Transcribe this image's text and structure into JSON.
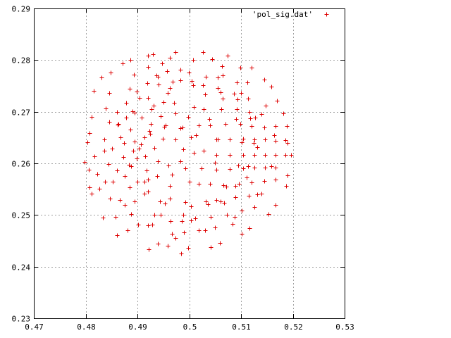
{
  "chart_data": {
    "type": "scatter",
    "title": "",
    "xlabel": "",
    "ylabel": "",
    "xlim": [
      0.47,
      0.53
    ],
    "ylim": [
      0.23,
      0.29
    ],
    "x_ticks": [
      "0.47",
      "0.48",
      "0.49",
      "0.5",
      "0.51",
      "0.52",
      "0.53"
    ],
    "y_ticks": [
      "0.23",
      "0.24",
      "0.25",
      "0.26",
      "0.27",
      "0.28",
      "0.29"
    ],
    "grid": true,
    "legend_position": "top-right",
    "marker": "+",
    "colors": {
      "series": "#dd0000",
      "grid": "#a0a0a0",
      "axes": "#000000"
    },
    "series": [
      {
        "name": "'pol_sig.dat'",
        "points": [
          [
            0.4817,
            0.2613
          ],
          [
            0.4836,
            0.2647
          ],
          [
            0.4862,
            0.2675
          ],
          [
            0.4894,
            0.2698
          ],
          [
            0.4931,
            0.2712
          ],
          [
            0.4971,
            0.2717
          ],
          [
            0.5009,
            0.2709
          ],
          [
            0.5039,
            0.2686
          ],
          [
            0.5055,
            0.2646
          ],
          [
            0.5049,
            0.2601
          ],
          [
            0.5018,
            0.256
          ],
          [
            0.4963,
            0.2532
          ],
          [
            0.4894,
            0.2527
          ],
          [
            0.4827,
            0.2551
          ],
          [
            0.4798,
            0.2603
          ],
          [
            0.4807,
            0.2659
          ],
          [
            0.4839,
            0.2707
          ],
          [
            0.4885,
            0.2744
          ],
          [
            0.494,
            0.2768
          ],
          [
            0.4999,
            0.2776
          ],
          [
            0.5055,
            0.2766
          ],
          [
            0.51,
            0.2736
          ],
          [
            0.5127,
            0.2689
          ],
          [
            0.5131,
            0.2632
          ],
          [
            0.5111,
            0.2573
          ],
          [
            0.5068,
            0.2524
          ],
          [
            0.5003,
            0.249
          ],
          [
            0.4928,
            0.2481
          ],
          [
            0.4858,
            0.2497
          ],
          [
            0.4811,
            0.2542
          ],
          [
            0.4873,
            0.2612
          ],
          [
            0.4895,
            0.2642
          ],
          [
            0.4923,
            0.2663
          ],
          [
            0.4955,
            0.2673
          ],
          [
            0.4987,
            0.267
          ],
          [
            0.5013,
            0.2654
          ],
          [
            0.5028,
            0.2624
          ],
          [
            0.5024,
            0.259
          ],
          [
            0.5,
            0.2564
          ],
          [
            0.4963,
            0.2556
          ],
          [
            0.4921,
            0.2568
          ],
          [
            0.4888,
            0.2595
          ],
          [
            0.4868,
            0.265
          ],
          [
            0.4878,
            0.2689
          ],
          [
            0.4904,
            0.2727
          ],
          [
            0.4941,
            0.2753
          ],
          [
            0.4983,
            0.2761
          ],
          [
            0.5026,
            0.2751
          ],
          [
            0.5064,
            0.2725
          ],
          [
            0.509,
            0.2686
          ],
          [
            0.5101,
            0.2641
          ],
          [
            0.5094,
            0.2596
          ],
          [
            0.5072,
            0.2555
          ],
          [
            0.5036,
            0.2521
          ],
          [
            0.4988,
            0.25
          ],
          [
            0.4932,
            0.25
          ],
          [
            0.4875,
            0.252
          ],
          [
            0.4838,
            0.2565
          ],
          [
            0.4822,
            0.258
          ],
          [
            0.4847,
            0.2532
          ],
          [
            0.4902,
            0.2481
          ],
          [
            0.4967,
            0.2463
          ],
          [
            0.5031,
            0.247
          ],
          [
            0.5088,
            0.2497
          ],
          [
            0.5131,
            0.254
          ],
          [
            0.5158,
            0.2594
          ],
          [
            0.5164,
            0.2654
          ],
          [
            0.5147,
            0.2712
          ],
          [
            0.5112,
            0.2757
          ],
          [
            0.5063,
            0.2788
          ],
          [
            0.5007,
            0.28
          ],
          [
            0.4948,
            0.2793
          ],
          [
            0.4893,
            0.2772
          ],
          [
            0.4846,
            0.2737
          ],
          [
            0.4812,
            0.269
          ],
          [
            0.4803,
            0.2641
          ],
          [
            0.4806,
            0.2588
          ],
          [
            0.4881,
            0.247
          ],
          [
            0.4939,
            0.2444
          ],
          [
            0.4998,
            0.2437
          ],
          [
            0.5059,
            0.2446
          ],
          [
            0.5117,
            0.2474
          ],
          [
            0.5166,
            0.252
          ],
          [
            0.519,
            0.2577
          ],
          [
            0.519,
            0.264
          ],
          [
            0.5182,
            0.2697
          ],
          [
            0.5158,
            0.2748
          ],
          [
            0.512,
            0.2786
          ],
          [
            0.5074,
            0.2808
          ],
          [
            0.5027,
            0.2816
          ],
          [
            0.4974,
            0.2816
          ],
          [
            0.4921,
            0.2808
          ],
          [
            0.4872,
            0.2793
          ],
          [
            0.483,
            0.2766
          ],
          [
            0.4816,
            0.274
          ],
          [
            0.4848,
            0.2776
          ],
          [
            0.4887,
            0.2801
          ],
          [
            0.493,
            0.2812
          ],
          [
            0.4963,
            0.2805
          ],
          [
            0.5044,
            0.2802
          ],
          [
            0.5098,
            0.2786
          ],
          [
            0.5145,
            0.2762
          ],
          [
            0.517,
            0.2722
          ],
          [
            0.5188,
            0.2672
          ],
          [
            0.5196,
            0.2616
          ],
          [
            0.5187,
            0.2557
          ],
          [
            0.5153,
            0.2502
          ],
          [
            0.5101,
            0.2464
          ],
          [
            0.5041,
            0.2438
          ],
          [
            0.4985,
            0.2426
          ],
          [
            0.4922,
            0.2433
          ],
          [
            0.4861,
            0.2461
          ],
          [
            0.4833,
            0.2495
          ],
          [
            0.4808,
            0.2553
          ],
          [
            0.4876,
            0.2576
          ],
          [
            0.4913,
            0.2541
          ],
          [
            0.4953,
            0.2522
          ],
          [
            0.5003,
            0.2517
          ],
          [
            0.5052,
            0.2529
          ],
          [
            0.5089,
            0.2556
          ],
          [
            0.5113,
            0.2595
          ],
          [
            0.5124,
            0.264
          ],
          [
            0.5118,
            0.2687
          ],
          [
            0.5093,
            0.2724
          ],
          [
            0.5055,
            0.2746
          ],
          [
            0.5008,
            0.2752
          ],
          [
            0.4962,
            0.2746
          ],
          [
            0.4921,
            0.2727
          ],
          [
            0.4891,
            0.2701
          ],
          [
            0.4863,
            0.2676
          ],
          [
            0.4851,
            0.2628
          ],
          [
            0.486,
            0.2586
          ],
          [
            0.4885,
            0.2553
          ],
          [
            0.4939,
            0.2604
          ],
          [
            0.496,
            0.2596
          ],
          [
            0.4983,
            0.2604
          ],
          [
            0.4988,
            0.2627
          ],
          [
            0.4974,
            0.2646
          ],
          [
            0.4949,
            0.2648
          ],
          [
            0.4932,
            0.263
          ],
          [
            0.4915,
            0.2614
          ],
          [
            0.4918,
            0.2586
          ],
          [
            0.4938,
            0.2575
          ],
          [
            0.4966,
            0.2578
          ],
          [
            0.4993,
            0.2591
          ],
          [
            0.5009,
            0.262
          ],
          [
            0.5004,
            0.265
          ],
          [
            0.4983,
            0.2668
          ],
          [
            0.4952,
            0.2671
          ],
          [
            0.4925,
            0.2657
          ],
          [
            0.4907,
            0.2637
          ],
          [
            0.4903,
            0.2628
          ],
          [
            0.5053,
            0.2617
          ],
          [
            0.5078,
            0.2616
          ],
          [
            0.5104,
            0.2617
          ],
          [
            0.5126,
            0.2617
          ],
          [
            0.5146,
            0.2617
          ],
          [
            0.5166,
            0.2617
          ],
          [
            0.5186,
            0.2617
          ],
          [
            0.5053,
            0.2588
          ],
          [
            0.5078,
            0.2589
          ],
          [
            0.5104,
            0.259
          ],
          [
            0.5126,
            0.2592
          ],
          [
            0.5146,
            0.2592
          ],
          [
            0.5166,
            0.2592
          ],
          [
            0.5053,
            0.2646
          ],
          [
            0.5078,
            0.2647
          ],
          [
            0.5104,
            0.2648
          ],
          [
            0.5126,
            0.2646
          ],
          [
            0.5146,
            0.2646
          ],
          [
            0.5166,
            0.2644
          ],
          [
            0.5186,
            0.2645
          ],
          [
            0.504,
            0.2674
          ],
          [
            0.507,
            0.2676
          ],
          [
            0.5098,
            0.2676
          ],
          [
            0.512,
            0.2672
          ],
          [
            0.5145,
            0.267
          ],
          [
            0.5166,
            0.2672
          ],
          [
            0.504,
            0.2561
          ],
          [
            0.5066,
            0.2558
          ],
          [
            0.5096,
            0.2561
          ],
          [
            0.512,
            0.2563
          ],
          [
            0.5145,
            0.2566
          ],
          [
            0.5166,
            0.2568
          ],
          [
            0.5032,
            0.2526
          ],
          [
            0.5061,
            0.2527
          ],
          [
            0.5089,
            0.2534
          ],
          [
            0.5115,
            0.2537
          ],
          [
            0.514,
            0.2542
          ],
          [
            0.5011,
            0.2493
          ],
          [
            0.5042,
            0.2497
          ],
          [
            0.5073,
            0.2501
          ],
          [
            0.5102,
            0.2508
          ],
          [
            0.5126,
            0.2515
          ],
          [
            0.499,
            0.2466
          ],
          [
            0.5018,
            0.2471
          ],
          [
            0.5049,
            0.2476
          ],
          [
            0.5083,
            0.2483
          ],
          [
            0.4958,
            0.2441
          ],
          [
            0.4974,
            0.2455
          ],
          [
            0.4986,
            0.2488
          ],
          [
            0.4992,
            0.2525
          ],
          [
            0.5028,
            0.2705
          ],
          [
            0.5062,
            0.2705
          ],
          [
            0.5092,
            0.2705
          ],
          [
            0.5117,
            0.27
          ],
          [
            0.514,
            0.2696
          ],
          [
            0.503,
            0.2734
          ],
          [
            0.5061,
            0.2738
          ],
          [
            0.5086,
            0.2735
          ],
          [
            0.5114,
            0.2725
          ],
          [
            0.5005,
            0.276
          ],
          [
            0.5032,
            0.2768
          ],
          [
            0.5064,
            0.277
          ],
          [
            0.5092,
            0.2757
          ],
          [
            0.4983,
            0.2782
          ],
          [
            0.492,
            0.2787
          ],
          [
            0.4937,
            0.277
          ],
          [
            0.4919,
            0.2755
          ],
          [
            0.4898,
            0.2739
          ],
          [
            0.4878,
            0.2717
          ],
          [
            0.486,
            0.2699
          ],
          [
            0.4846,
            0.268
          ],
          [
            0.4908,
            0.2689
          ],
          [
            0.4927,
            0.2705
          ],
          [
            0.495,
            0.2718
          ],
          [
            0.4959,
            0.2737
          ],
          [
            0.4957,
            0.2778
          ],
          [
            0.4968,
            0.2758
          ],
          [
            0.4886,
            0.2665
          ],
          [
            0.4874,
            0.264
          ],
          [
            0.4892,
            0.2624
          ],
          [
            0.4913,
            0.2651
          ],
          [
            0.4926,
            0.2676
          ],
          [
            0.4945,
            0.2692
          ],
          [
            0.4973,
            0.2697
          ],
          [
            0.4998,
            0.269
          ],
          [
            0.5019,
            0.2673
          ],
          [
            0.4836,
            0.2625
          ],
          [
            0.4844,
            0.2599
          ],
          [
            0.4852,
            0.2564
          ],
          [
            0.4866,
            0.2529
          ],
          [
            0.4888,
            0.2502
          ],
          [
            0.4921,
            0.248
          ],
          [
            0.4945,
            0.25
          ],
          [
            0.4964,
            0.2488
          ],
          [
            0.4944,
            0.2527
          ],
          [
            0.4921,
            0.2545
          ],
          [
            0.49,
            0.2565
          ],
          [
            0.4884,
            0.2597
          ],
          [
            0.4898,
            0.261
          ],
          [
            0.4914,
            0.2565
          ]
        ]
      }
    ]
  }
}
